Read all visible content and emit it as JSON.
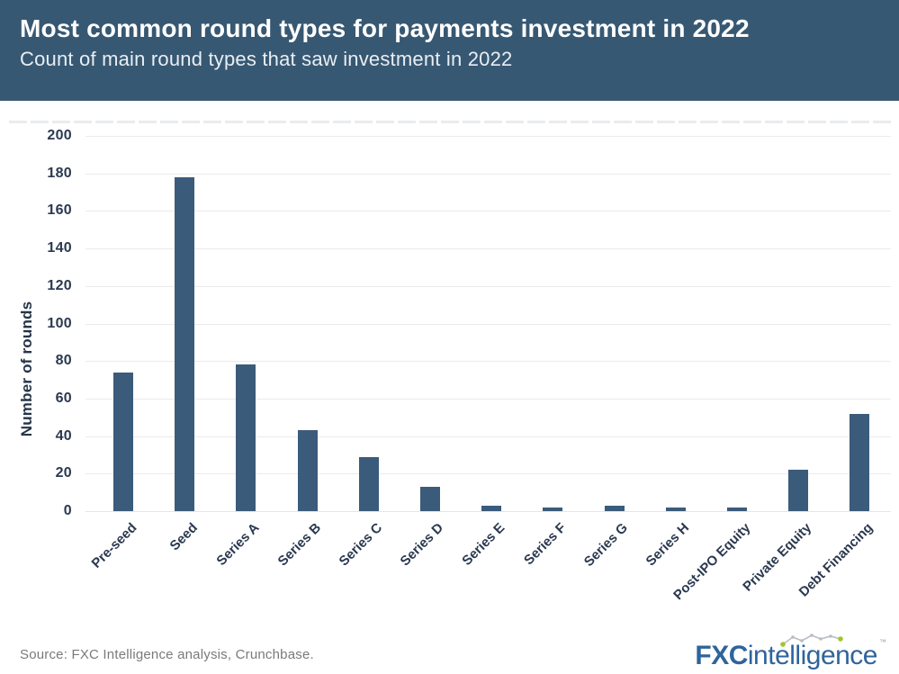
{
  "header": {
    "title": "Most common round types for payments investment in 2022",
    "subtitle": "Count of main round types that saw investment in 2022"
  },
  "chart_data": {
    "type": "bar",
    "title": "Most common round types for payments investment in 2022",
    "subtitle": "Count of main round types that saw investment in 2022",
    "categories": [
      "Pre-seed",
      "Seed",
      "Series A",
      "Series B",
      "Series C",
      "Series D",
      "Series E",
      "Series F",
      "Series G",
      "Series H",
      "Post-IPO Equity",
      "Private Equity",
      "Debt Financing"
    ],
    "values": [
      74,
      178,
      78,
      43,
      29,
      13,
      3,
      2,
      3,
      2,
      2,
      22,
      52
    ],
    "xlabel": "",
    "ylabel": "Number of rounds",
    "ylim": [
      0,
      200
    ],
    "yticks": [
      0,
      20,
      40,
      60,
      80,
      100,
      120,
      140,
      160,
      180,
      200
    ],
    "grid": true,
    "legend": "none",
    "bar_color": "#3b5b7a"
  },
  "colors": {
    "header_bg": "#375872",
    "bar": "#3b5b7a",
    "axis_text": "#2b3950",
    "gridline": "#ebebeb",
    "source_text": "#7a7a7a",
    "logo_blue": "#2f649b",
    "logo_green": "#a2c52b",
    "spark_gray": "#b8bdc3"
  },
  "footer": {
    "source": "Source: FXC Intelligence analysis, Crunchbase.",
    "logo": {
      "fxc": "FXC",
      "rest": "intelligence",
      "tm": "TM"
    }
  }
}
